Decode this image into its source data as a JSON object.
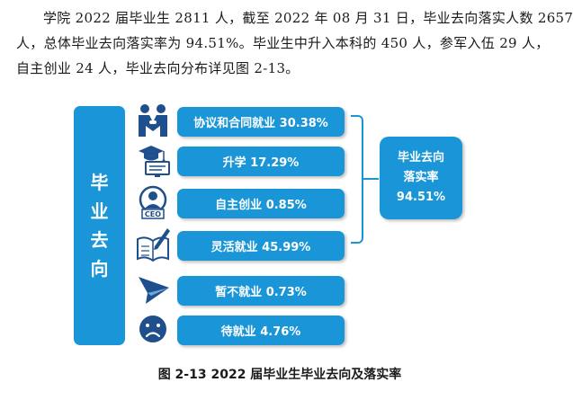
{
  "paragraph": {
    "line1": "学院 2022 届毕业生 2811 人，截至 2022 年 08 月 31 日，毕业去向落实人数 2657",
    "line2": "人，总体毕业去向落实率为 94.51%。毕业生中升入本科的 450 人，参军入伍 29 人，",
    "line3": "自主创业 24 人，毕业去向分布详见图 2-13。"
  },
  "figure": {
    "side_label": "毕业去向",
    "items": [
      {
        "icon": "handshake-icon",
        "label": "协议和合同就业 30.38%"
      },
      {
        "icon": "graduation-cap-icon",
        "label": "升学 17.29%"
      },
      {
        "icon": "ceo-person-icon",
        "label": "自主创业 0.85%"
      },
      {
        "icon": "notebook-pen-icon",
        "label": "灵活就业 45.99%"
      },
      {
        "icon": "paper-plane-icon",
        "label": "暂不就业 0.73%"
      },
      {
        "icon": "sad-face-icon",
        "label": "待就业 4.76%"
      }
    ],
    "rate_box": {
      "line1": "毕业去向",
      "line2": "落实率",
      "value": "94.51%"
    },
    "colors": {
      "accent": "#1a96d8",
      "icon": "#1f4f8c"
    }
  },
  "caption": "图 2-13 2022 届毕业生毕业去向及落实率"
}
